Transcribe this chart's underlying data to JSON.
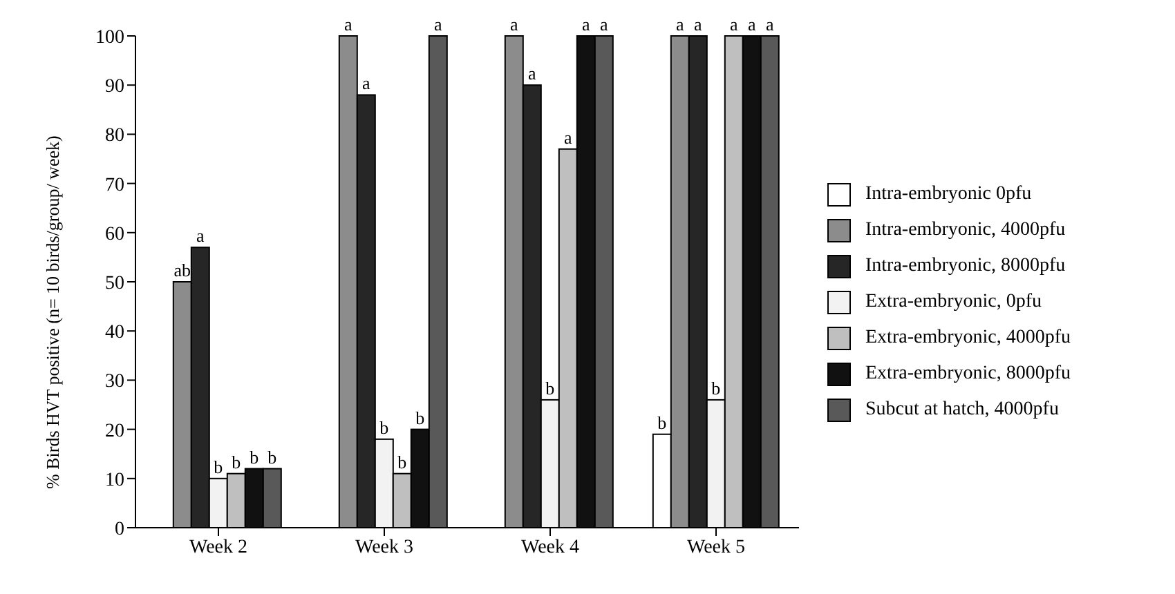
{
  "chart_data": {
    "type": "bar",
    "ylabel": "% Birds HVT positive (n= 10 birds/group/ week)",
    "categories": [
      "Week 2",
      "Week 3",
      "Week 4",
      "Week 5"
    ],
    "ylim": [
      0,
      100
    ],
    "yticks": [
      0,
      10,
      20,
      30,
      40,
      50,
      60,
      70,
      80,
      90,
      100
    ],
    "grid": false,
    "legend": "right",
    "series": [
      {
        "name": "Intra-embryonic 0pfu",
        "color": "#ffffff",
        "values": [
          0,
          0,
          0,
          19
        ],
        "value_labels": [
          null,
          null,
          null,
          "b"
        ]
      },
      {
        "name": "Intra-embryonic, 4000pfu",
        "color": "#8c8c8c",
        "values": [
          50,
          100,
          100,
          100
        ],
        "value_labels": [
          "ab",
          "a",
          "a",
          "a"
        ]
      },
      {
        "name": "Intra-embryonic, 8000pfu",
        "color": "#262626",
        "values": [
          57,
          88,
          90,
          100
        ],
        "value_labels": [
          "a",
          "a",
          "a",
          "a"
        ]
      },
      {
        "name": "Extra-embryonic, 0pfu",
        "color": "#f2f2f2",
        "values": [
          10,
          18,
          26,
          26
        ],
        "value_labels": [
          "b",
          "b",
          "b",
          "b"
        ]
      },
      {
        "name": "Extra-embryonic, 4000pfu",
        "color": "#bfbfbf",
        "values": [
          11,
          11,
          77,
          100
        ],
        "value_labels": [
          "b",
          "b",
          "a",
          "a"
        ]
      },
      {
        "name": "Extra-embryonic, 8000pfu",
        "color": "#111111",
        "values": [
          12,
          20,
          100,
          100
        ],
        "value_labels": [
          "b",
          "b",
          "a",
          "a"
        ]
      },
      {
        "name": "Subcut at hatch, 4000pfu",
        "color": "#595959",
        "values": [
          12,
          100,
          100,
          100
        ],
        "value_labels": [
          "b",
          "a",
          "a",
          "a"
        ]
      }
    ]
  }
}
